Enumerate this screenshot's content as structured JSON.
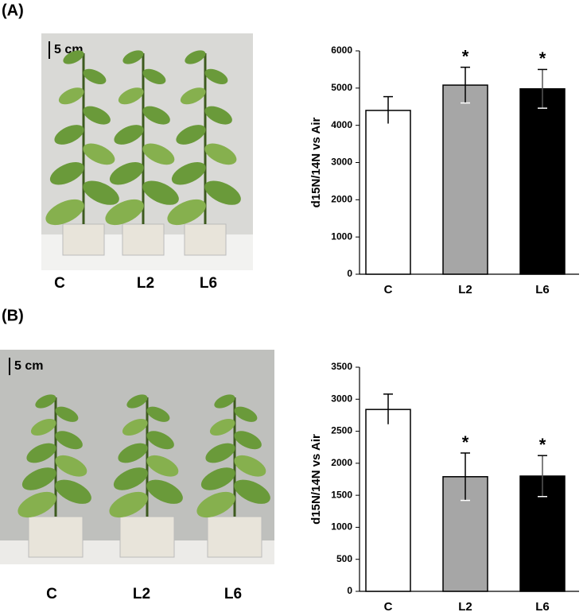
{
  "panels": [
    {
      "label": "(A)",
      "photo": {
        "scale": "5 cm",
        "labels": [
          "C",
          "L2",
          "L6"
        ]
      }
    },
    {
      "label": "(B)",
      "photo": {
        "scale": "5 cm",
        "labels": [
          "C",
          "L2",
          "L6"
        ]
      }
    }
  ],
  "chart_data": [
    {
      "type": "bar",
      "y_label": "d15N/14N vs Air",
      "categories": [
        "C",
        "L2",
        "L6"
      ],
      "values": [
        4400,
        5080,
        4980
      ],
      "errors": [
        370,
        480,
        520
      ],
      "significance": [
        null,
        "*",
        "*"
      ],
      "colors": [
        "#ffffff",
        "#a6a6a6",
        "#000000"
      ],
      "ylim": [
        0,
        6000
      ],
      "yticks": [
        0,
        1000,
        2000,
        3000,
        4000,
        5000,
        6000
      ]
    },
    {
      "type": "bar",
      "y_label": "d15N/14N vs Air",
      "categories": [
        "C",
        "L2",
        "L6"
      ],
      "values": [
        2840,
        1790,
        1800
      ],
      "errors": [
        240,
        370,
        320
      ],
      "significance": [
        null,
        "*",
        "*"
      ],
      "colors": [
        "#ffffff",
        "#a6a6a6",
        "#000000"
      ],
      "ylim": [
        0,
        3500
      ],
      "yticks": [
        0,
        500,
        1000,
        1500,
        2000,
        2500,
        3000,
        3500
      ]
    }
  ]
}
